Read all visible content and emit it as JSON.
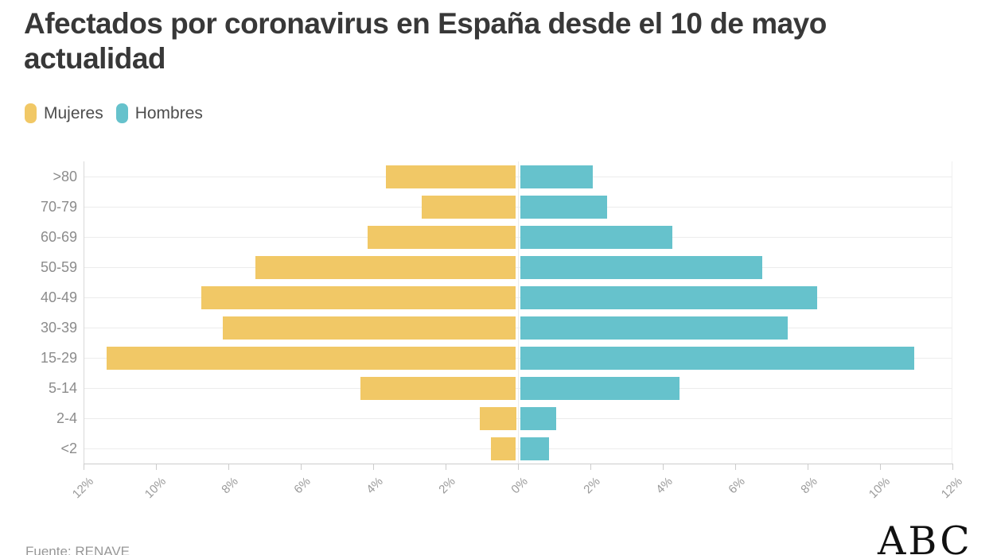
{
  "header": {
    "title_line1": "Afectados por coronavirus en España desde el 10 de mayo",
    "title_line2": "actualidad"
  },
  "legend": {
    "items": [
      {
        "label": "Mujeres",
        "color": "#F1C866"
      },
      {
        "label": "Hombres",
        "color": "#66C2CC"
      }
    ]
  },
  "footer": {
    "source": "Fuente: RENAVE",
    "brand": "ABC"
  },
  "chart_data": {
    "type": "bar",
    "subtype": "population-pyramid",
    "title": "Afectados por coronavirus en España desde el 10 de mayo actualidad",
    "categories": [
      ">80",
      "70-79",
      "60-69",
      "50-59",
      "40-49",
      "30-39",
      "15-29",
      "5-14",
      "2-4",
      "<2"
    ],
    "series": [
      {
        "name": "Mujeres",
        "side": "left",
        "color": "#F1C866",
        "values": [
          3.6,
          2.6,
          4.1,
          7.2,
          8.7,
          8.1,
          11.3,
          4.3,
          1.0,
          0.7
        ]
      },
      {
        "name": "Hombres",
        "side": "right",
        "color": "#66C2CC",
        "values": [
          2.0,
          2.4,
          4.2,
          6.7,
          8.2,
          7.4,
          10.9,
          4.4,
          1.0,
          0.8
        ]
      }
    ],
    "x_axis": {
      "unit": "%",
      "max_percent": 12,
      "tick_step_percent": 2,
      "tick_labels": [
        "12%",
        "10%",
        "8%",
        "6%",
        "4%",
        "2%",
        "0%",
        "2%",
        "4%",
        "6%",
        "8%",
        "10%",
        "12%"
      ]
    },
    "grid": true,
    "legend_position": "top-left"
  }
}
